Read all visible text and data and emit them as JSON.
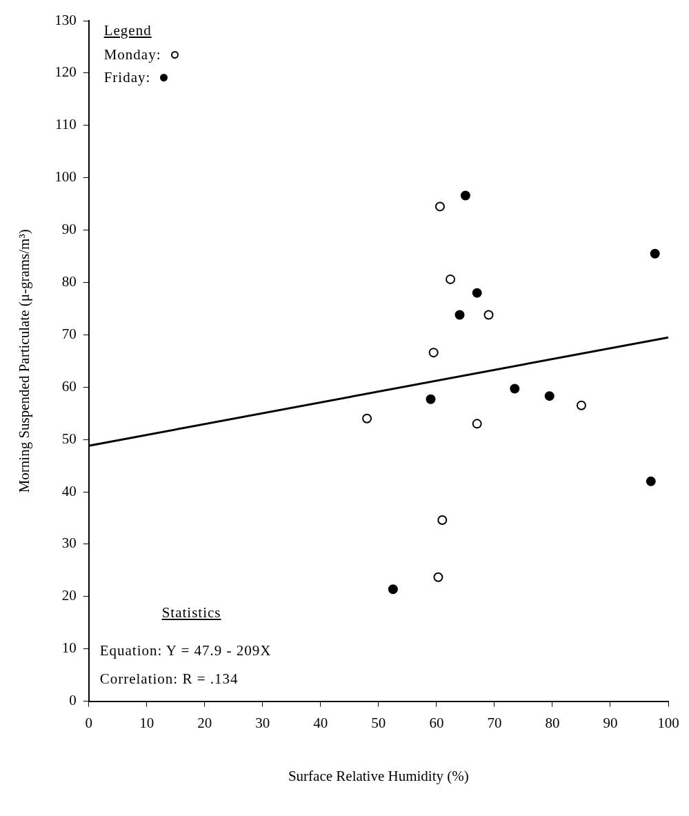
{
  "chart_data": {
    "type": "scatter",
    "xlabel": "Surface Relative Humidity (%)",
    "ylabel": "Morning Suspended Particulate (μ-grams/m³)",
    "xlim": [
      0,
      100
    ],
    "xticks": [
      0,
      10,
      20,
      30,
      40,
      50,
      60,
      70,
      80,
      90,
      100
    ],
    "ylim": [
      0,
      130
    ],
    "yticks": [
      0,
      10,
      20,
      30,
      40,
      50,
      60,
      70,
      80,
      90,
      100,
      110,
      120,
      130
    ],
    "grid": false,
    "legend": "top left",
    "legend_title": "Legend",
    "marker": "circle",
    "series": [
      {
        "name": "Monday:",
        "color": "#000000",
        "x": [
          60.6,
          62.4,
          69,
          59.5,
          48,
          67,
          85,
          61,
          60.3
        ],
        "values": [
          94.5,
          80.6,
          73.8,
          66.6,
          54,
          53,
          56.5,
          34.6,
          23.7
        ]
      },
      {
        "name": "Friday:",
        "color": "#000000",
        "x": [
          65,
          97.7,
          67,
          64,
          59,
          73.5,
          79.5,
          97,
          52.5
        ],
        "values": [
          96.6,
          85.5,
          78,
          73.8,
          57.7,
          59.7,
          58.3,
          42,
          21.4
        ]
      },
      {
        "type": "line",
        "color": "#000000",
        "marker": "none",
        "x": [
          0,
          100
        ],
        "values": [
          48.8,
          69.5
        ]
      }
    ],
    "annotations": [
      "Statistics",
      "Equation: Y = 47.9 - 209X",
      "Correlation: R = .134"
    ]
  }
}
